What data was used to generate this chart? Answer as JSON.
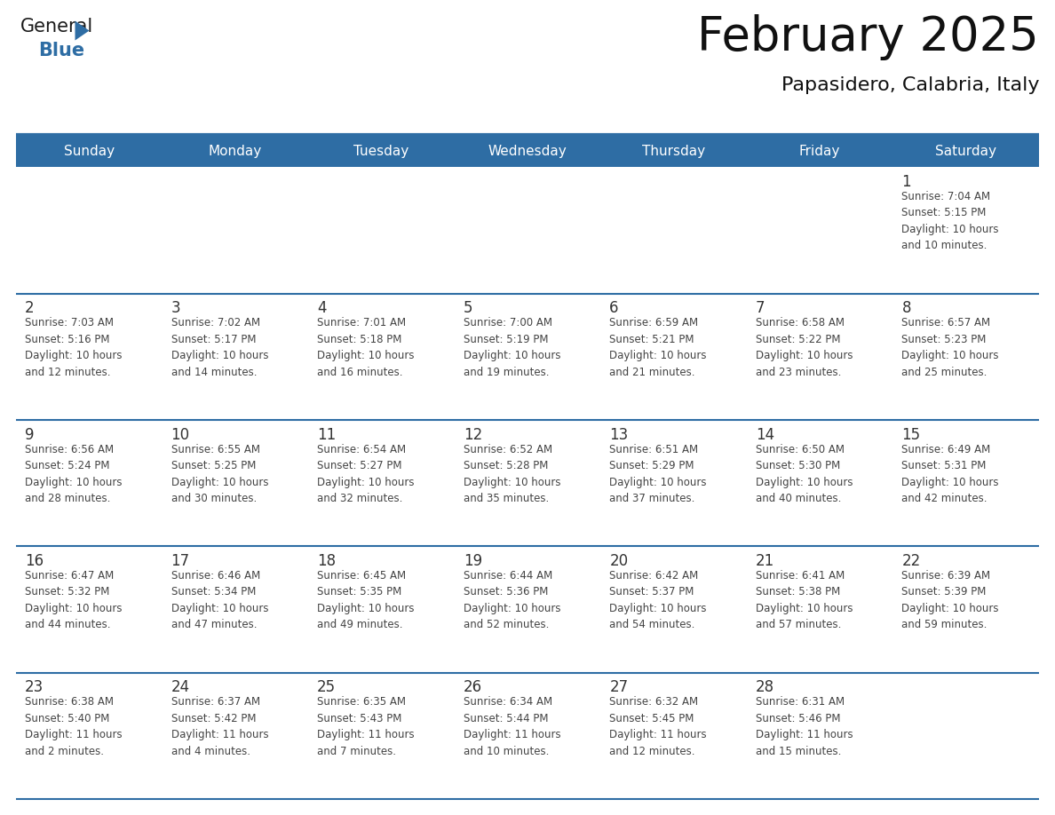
{
  "title": "February 2025",
  "subtitle": "Papasidero, Calabria, Italy",
  "header_bg": "#2E6DA4",
  "header_text": "#FFFFFF",
  "cell_bg": "#FFFFFF",
  "row_separator_color": "#2E6DA4",
  "text_color": "#444444",
  "day_num_color": "#333333",
  "day_headers": [
    "Sunday",
    "Monday",
    "Tuesday",
    "Wednesday",
    "Thursday",
    "Friday",
    "Saturday"
  ],
  "calendar": [
    [
      null,
      null,
      null,
      null,
      null,
      null,
      {
        "day": "1",
        "sunrise": "7:04 AM",
        "sunset": "5:15 PM",
        "daylight": "10 hours",
        "daylight2": "and 10 minutes."
      }
    ],
    [
      {
        "day": "2",
        "sunrise": "7:03 AM",
        "sunset": "5:16 PM",
        "daylight": "10 hours",
        "daylight2": "and 12 minutes."
      },
      {
        "day": "3",
        "sunrise": "7:02 AM",
        "sunset": "5:17 PM",
        "daylight": "10 hours",
        "daylight2": "and 14 minutes."
      },
      {
        "day": "4",
        "sunrise": "7:01 AM",
        "sunset": "5:18 PM",
        "daylight": "10 hours",
        "daylight2": "and 16 minutes."
      },
      {
        "day": "5",
        "sunrise": "7:00 AM",
        "sunset": "5:19 PM",
        "daylight": "10 hours",
        "daylight2": "and 19 minutes."
      },
      {
        "day": "6",
        "sunrise": "6:59 AM",
        "sunset": "5:21 PM",
        "daylight": "10 hours",
        "daylight2": "and 21 minutes."
      },
      {
        "day": "7",
        "sunrise": "6:58 AM",
        "sunset": "5:22 PM",
        "daylight": "10 hours",
        "daylight2": "and 23 minutes."
      },
      {
        "day": "8",
        "sunrise": "6:57 AM",
        "sunset": "5:23 PM",
        "daylight": "10 hours",
        "daylight2": "and 25 minutes."
      }
    ],
    [
      {
        "day": "9",
        "sunrise": "6:56 AM",
        "sunset": "5:24 PM",
        "daylight": "10 hours",
        "daylight2": "and 28 minutes."
      },
      {
        "day": "10",
        "sunrise": "6:55 AM",
        "sunset": "5:25 PM",
        "daylight": "10 hours",
        "daylight2": "and 30 minutes."
      },
      {
        "day": "11",
        "sunrise": "6:54 AM",
        "sunset": "5:27 PM",
        "daylight": "10 hours",
        "daylight2": "and 32 minutes."
      },
      {
        "day": "12",
        "sunrise": "6:52 AM",
        "sunset": "5:28 PM",
        "daylight": "10 hours",
        "daylight2": "and 35 minutes."
      },
      {
        "day": "13",
        "sunrise": "6:51 AM",
        "sunset": "5:29 PM",
        "daylight": "10 hours",
        "daylight2": "and 37 minutes."
      },
      {
        "day": "14",
        "sunrise": "6:50 AM",
        "sunset": "5:30 PM",
        "daylight": "10 hours",
        "daylight2": "and 40 minutes."
      },
      {
        "day": "15",
        "sunrise": "6:49 AM",
        "sunset": "5:31 PM",
        "daylight": "10 hours",
        "daylight2": "and 42 minutes."
      }
    ],
    [
      {
        "day": "16",
        "sunrise": "6:47 AM",
        "sunset": "5:32 PM",
        "daylight": "10 hours",
        "daylight2": "and 44 minutes."
      },
      {
        "day": "17",
        "sunrise": "6:46 AM",
        "sunset": "5:34 PM",
        "daylight": "10 hours",
        "daylight2": "and 47 minutes."
      },
      {
        "day": "18",
        "sunrise": "6:45 AM",
        "sunset": "5:35 PM",
        "daylight": "10 hours",
        "daylight2": "and 49 minutes."
      },
      {
        "day": "19",
        "sunrise": "6:44 AM",
        "sunset": "5:36 PM",
        "daylight": "10 hours",
        "daylight2": "and 52 minutes."
      },
      {
        "day": "20",
        "sunrise": "6:42 AM",
        "sunset": "5:37 PM",
        "daylight": "10 hours",
        "daylight2": "and 54 minutes."
      },
      {
        "day": "21",
        "sunrise": "6:41 AM",
        "sunset": "5:38 PM",
        "daylight": "10 hours",
        "daylight2": "and 57 minutes."
      },
      {
        "day": "22",
        "sunrise": "6:39 AM",
        "sunset": "5:39 PM",
        "daylight": "10 hours",
        "daylight2": "and 59 minutes."
      }
    ],
    [
      {
        "day": "23",
        "sunrise": "6:38 AM",
        "sunset": "5:40 PM",
        "daylight": "11 hours",
        "daylight2": "and 2 minutes."
      },
      {
        "day": "24",
        "sunrise": "6:37 AM",
        "sunset": "5:42 PM",
        "daylight": "11 hours",
        "daylight2": "and 4 minutes."
      },
      {
        "day": "25",
        "sunrise": "6:35 AM",
        "sunset": "5:43 PM",
        "daylight": "11 hours",
        "daylight2": "and 7 minutes."
      },
      {
        "day": "26",
        "sunrise": "6:34 AM",
        "sunset": "5:44 PM",
        "daylight": "11 hours",
        "daylight2": "and 10 minutes."
      },
      {
        "day": "27",
        "sunrise": "6:32 AM",
        "sunset": "5:45 PM",
        "daylight": "11 hours",
        "daylight2": "and 12 minutes."
      },
      {
        "day": "28",
        "sunrise": "6:31 AM",
        "sunset": "5:46 PM",
        "daylight": "11 hours",
        "daylight2": "and 15 minutes."
      },
      null
    ]
  ],
  "logo_color_general": "#1a1a1a",
  "logo_color_blue": "#2E6DA4",
  "logo_triangle_color": "#2E6DA4",
  "title_fontsize": 38,
  "subtitle_fontsize": 16,
  "header_fontsize": 11,
  "day_num_fontsize": 12,
  "info_fontsize": 8.5
}
